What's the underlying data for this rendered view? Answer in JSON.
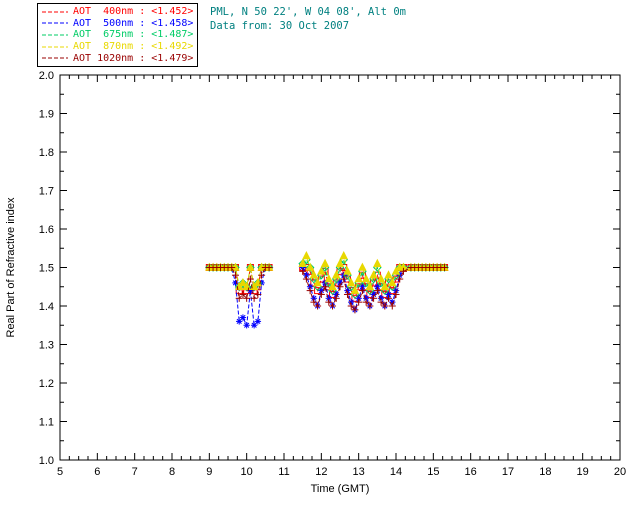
{
  "header": {
    "location": "PML, N 50 22', W 04 08', Alt 0m",
    "date": "Data from: 30 Oct 2007",
    "color": "#008080"
  },
  "chart_data": {
    "type": "line",
    "title": "",
    "xlabel": "Time (GMT)",
    "ylabel": "Real Part of Refractive index",
    "xlim": [
      5,
      20
    ],
    "ylim": [
      1.0,
      2.0
    ],
    "xtick_step": 1,
    "ytick_step": 0.1,
    "xminor_step": 0.25,
    "yminor_step": 0.05,
    "grid": false,
    "legend_position": "top-left",
    "gap_threshold": 0.25,
    "x": [
      9.0,
      9.1,
      9.2,
      9.3,
      9.4,
      9.5,
      9.6,
      9.7,
      9.8,
      9.9,
      10.0,
      10.1,
      10.2,
      10.3,
      10.4,
      10.5,
      10.6,
      11.5,
      11.6,
      11.7,
      11.8,
      11.9,
      12.0,
      12.1,
      12.2,
      12.3,
      12.4,
      12.5,
      12.6,
      12.7,
      12.8,
      12.9,
      13.0,
      13.1,
      13.2,
      13.3,
      13.4,
      13.5,
      13.6,
      13.7,
      13.8,
      13.9,
      14.0,
      14.1,
      14.2,
      14.4,
      14.5,
      14.6,
      14.7,
      14.8,
      14.9,
      15.0,
      15.1,
      15.2,
      15.3
    ],
    "series": [
      {
        "id": "aot-400",
        "name": "AOT 400nm",
        "mean_label": "<1.452>",
        "legend_label": "AOT  400nm : <1.452>",
        "color": "#ff0000",
        "symbol": "square",
        "dash": "5,2",
        "values": [
          1.5,
          1.5,
          1.5,
          1.5,
          1.5,
          1.5,
          1.5,
          1.5,
          1.44,
          1.45,
          1.44,
          1.5,
          1.44,
          1.45,
          1.5,
          1.5,
          1.5,
          1.5,
          1.5,
          1.49,
          1.46,
          1.44,
          1.47,
          1.49,
          1.45,
          1.43,
          1.46,
          1.49,
          1.5,
          1.47,
          1.44,
          1.42,
          1.45,
          1.48,
          1.45,
          1.43,
          1.46,
          1.48,
          1.45,
          1.43,
          1.46,
          1.44,
          1.47,
          1.5,
          1.5,
          1.5,
          1.5,
          1.5,
          1.5,
          1.5,
          1.5,
          1.5,
          1.5,
          1.5,
          1.5
        ]
      },
      {
        "id": "aot-500",
        "name": "AOT 500nm",
        "mean_label": "<1.458>",
        "legend_label": "AOT  500nm : <1.458>",
        "color": "#0000ff",
        "symbol": "asterisk",
        "dash": "4,2",
        "values": [
          1.5,
          1.5,
          1.5,
          1.5,
          1.5,
          1.5,
          1.5,
          1.46,
          1.36,
          1.37,
          1.35,
          1.44,
          1.35,
          1.36,
          1.46,
          1.5,
          1.5,
          1.5,
          1.48,
          1.45,
          1.42,
          1.4,
          1.44,
          1.46,
          1.42,
          1.4,
          1.43,
          1.46,
          1.48,
          1.44,
          1.41,
          1.39,
          1.42,
          1.45,
          1.42,
          1.4,
          1.43,
          1.45,
          1.42,
          1.4,
          1.43,
          1.41,
          1.44,
          1.48,
          1.5,
          1.5,
          1.5,
          1.5,
          1.5,
          1.5,
          1.5,
          1.5,
          1.5,
          1.5,
          1.5
        ]
      },
      {
        "id": "aot-675",
        "name": "AOT 675nm",
        "mean_label": "<1.487>",
        "legend_label": "AOT  675nm : <1.487>",
        "color": "#00cc66",
        "symbol": "diamond",
        "dash": "4,2",
        "values": [
          1.5,
          1.5,
          1.5,
          1.5,
          1.5,
          1.5,
          1.5,
          1.5,
          1.45,
          1.46,
          1.45,
          1.5,
          1.45,
          1.46,
          1.5,
          1.5,
          1.5,
          1.51,
          1.52,
          1.5,
          1.47,
          1.45,
          1.48,
          1.5,
          1.46,
          1.44,
          1.47,
          1.5,
          1.52,
          1.48,
          1.45,
          1.43,
          1.46,
          1.49,
          1.46,
          1.44,
          1.47,
          1.5,
          1.46,
          1.44,
          1.47,
          1.45,
          1.48,
          1.5,
          1.5,
          1.5,
          1.5,
          1.5,
          1.5,
          1.5,
          1.5,
          1.5,
          1.5,
          1.5,
          1.5
        ]
      },
      {
        "id": "aot-870",
        "name": "AOT 870nm",
        "mean_label": "<1.492>",
        "legend_label": "AOT  870nm : <1.492>",
        "color": "#e8d800",
        "symbol": "triangle",
        "dash": "4,2",
        "values": [
          1.5,
          1.5,
          1.5,
          1.5,
          1.5,
          1.5,
          1.5,
          1.5,
          1.45,
          1.46,
          1.45,
          1.5,
          1.45,
          1.46,
          1.5,
          1.5,
          1.5,
          1.51,
          1.53,
          1.5,
          1.48,
          1.46,
          1.49,
          1.51,
          1.47,
          1.45,
          1.48,
          1.51,
          1.53,
          1.49,
          1.46,
          1.44,
          1.47,
          1.5,
          1.47,
          1.45,
          1.48,
          1.51,
          1.47,
          1.45,
          1.48,
          1.46,
          1.49,
          1.5,
          1.5,
          1.5,
          1.5,
          1.5,
          1.5,
          1.5,
          1.5,
          1.5,
          1.5,
          1.5,
          1.5
        ]
      },
      {
        "id": "aot-1020",
        "name": "AOT 1020nm",
        "mean_label": "<1.479>",
        "legend_label": "AOT 1020nm : <1.479>",
        "color": "#990000",
        "symbol": "plus",
        "dash": "4,2",
        "values": [
          1.5,
          1.5,
          1.5,
          1.5,
          1.5,
          1.5,
          1.5,
          1.48,
          1.42,
          1.43,
          1.42,
          1.47,
          1.42,
          1.43,
          1.48,
          1.5,
          1.5,
          1.49,
          1.47,
          1.44,
          1.41,
          1.4,
          1.43,
          1.45,
          1.41,
          1.4,
          1.42,
          1.45,
          1.47,
          1.43,
          1.4,
          1.39,
          1.41,
          1.44,
          1.41,
          1.4,
          1.42,
          1.44,
          1.41,
          1.4,
          1.42,
          1.4,
          1.43,
          1.47,
          1.49,
          1.5,
          1.5,
          1.5,
          1.5,
          1.5,
          1.5,
          1.5,
          1.5,
          1.5,
          1.5
        ]
      }
    ]
  }
}
